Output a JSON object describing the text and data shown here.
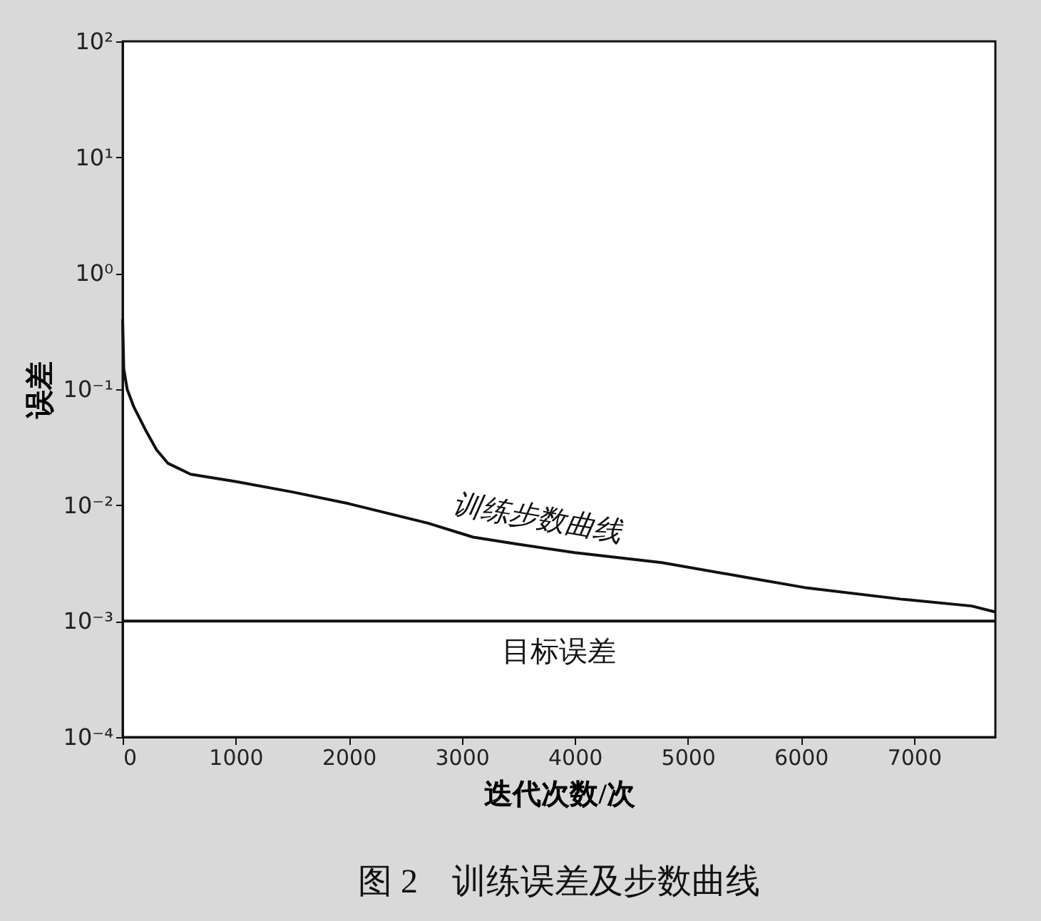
{
  "chart_data": {
    "type": "line",
    "title": "图 2　训练误差及步数曲线",
    "xlabel": "迭代次数/次",
    "ylabel": "误差",
    "log": "y",
    "grid": false,
    "marker": "none",
    "line_style": "solid",
    "xlim": [
      0,
      7720
    ],
    "xticks": [
      0,
      1000,
      2000,
      3000,
      4000,
      5000,
      6000,
      7000
    ],
    "ylim": [
      0.0001,
      100
    ],
    "yticks": [
      {
        "value": 0.0001,
        "label": "10⁻⁴"
      },
      {
        "value": 0.001,
        "label": "10⁻³"
      },
      {
        "value": 0.01,
        "label": "10⁻²"
      },
      {
        "value": 0.1,
        "label": "10⁻¹"
      },
      {
        "value": 1,
        "label": "10⁰"
      },
      {
        "value": 10,
        "label": "10¹"
      },
      {
        "value": 100,
        "label": "10²"
      }
    ],
    "x": [
      0,
      10,
      40,
      100,
      200,
      300,
      400,
      600,
      1000,
      1500,
      2000,
      2700,
      3100,
      3500,
      4000,
      4770,
      5500,
      6030,
      6880,
      7510,
      7720
    ],
    "series": [
      {
        "name": "训练步数曲线",
        "color": "#111111",
        "values": [
          0.4,
          0.15,
          0.1,
          0.07,
          0.045,
          0.03,
          0.023,
          0.0185,
          0.016,
          0.013,
          0.0103,
          0.007,
          0.0053,
          0.0046,
          0.0039,
          0.0032,
          0.0024,
          0.00195,
          0.00155,
          0.00135,
          0.0012
        ]
      }
    ],
    "ref_lines": [
      {
        "axis": "y",
        "value": 0.001,
        "label": "目标误差",
        "color": "#111111"
      }
    ]
  }
}
